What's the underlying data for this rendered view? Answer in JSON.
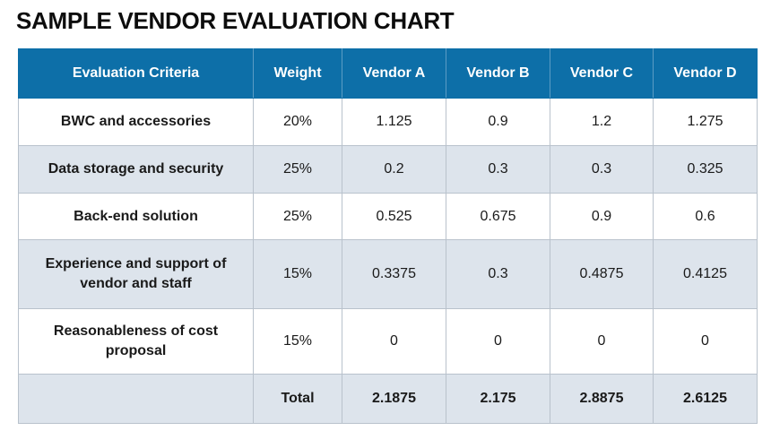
{
  "title": "SAMPLE VENDOR EVALUATION CHART",
  "chart_data": {
    "type": "table",
    "columns": [
      "Evaluation Criteria",
      "Weight",
      "Vendor A",
      "Vendor B",
      "Vendor C",
      "Vendor D"
    ],
    "rows": [
      {
        "criteria": "BWC and accessories",
        "weight": "20%",
        "vendor_a": "1.125",
        "vendor_b": "0.9",
        "vendor_c": "1.2",
        "vendor_d": "1.275"
      },
      {
        "criteria": "Data storage and security",
        "weight": "25%",
        "vendor_a": "0.2",
        "vendor_b": "0.3",
        "vendor_c": "0.3",
        "vendor_d": "0.325"
      },
      {
        "criteria": "Back-end solution",
        "weight": "25%",
        "vendor_a": "0.525",
        "vendor_b": "0.675",
        "vendor_c": "0.9",
        "vendor_d": "0.6"
      },
      {
        "criteria": "Experience and support of vendor and staff",
        "weight": "15%",
        "vendor_a": "0.3375",
        "vendor_b": "0.3",
        "vendor_c": "0.4875",
        "vendor_d": "0.4125"
      },
      {
        "criteria": "Reasonableness of cost proposal",
        "weight": "15%",
        "vendor_a": "0",
        "vendor_b": "0",
        "vendor_c": "0",
        "vendor_d": "0"
      }
    ],
    "total": {
      "label": "Total",
      "vendor_a": "2.1875",
      "vendor_b": "2.175",
      "vendor_c": "2.8875",
      "vendor_d": "2.6125"
    }
  },
  "colors": {
    "header_bg": "#0d6fa8",
    "header_text": "#ffffff",
    "shaded_row": "#dde4ec",
    "border": "#b9c2cc"
  }
}
